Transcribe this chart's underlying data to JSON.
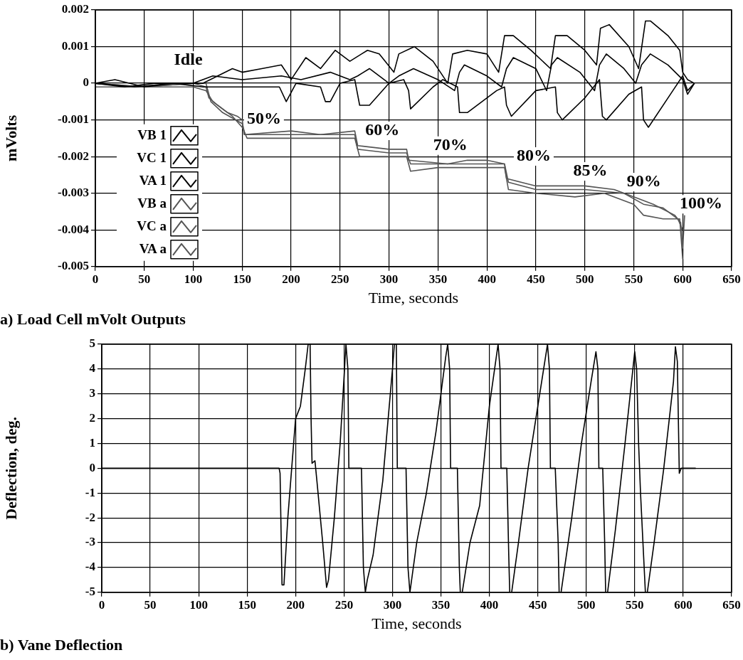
{
  "chart_data": [
    {
      "type": "line",
      "title": "a) Load Cell mVolt Outputs",
      "xlabel": "Time, seconds",
      "ylabel": "mVolts",
      "xlim": [
        0,
        650
      ],
      "xticks": [
        0,
        50,
        100,
        150,
        200,
        250,
        300,
        350,
        400,
        450,
        500,
        550,
        600,
        650
      ],
      "ylim": [
        -0.005,
        0.002
      ],
      "yticks": [
        -0.005,
        -0.004,
        -0.003,
        -0.002,
        -0.001,
        0,
        0.001,
        0.002
      ],
      "grid": true,
      "marker": "none",
      "legend": "bottom left",
      "annotations": [
        "Idle",
        "50%",
        "60%",
        "70%",
        "80%",
        "85%",
        "90%",
        "100%"
      ],
      "series": [
        {
          "name": "VB 1",
          "color": "#000000",
          "x": [
            0,
            20,
            50,
            80,
            110,
            125,
            140,
            150,
            170,
            190,
            200,
            215,
            230,
            245,
            260,
            278,
            290,
            305,
            310,
            326,
            345,
            360,
            365,
            380,
            400,
            412,
            418,
            427,
            445,
            465,
            470,
            482,
            500,
            512,
            516,
            525,
            545,
            555,
            562,
            567,
            585,
            597,
            600,
            605,
            612
          ],
          "values": [
            0,
            0.0001,
            -0.0001,
            0,
            0,
            0.0002,
            0.0004,
            0.0003,
            0.0004,
            0.0005,
            0.0001,
            0.0007,
            0.0004,
            0.0009,
            0.0006,
            0.0009,
            0.0008,
            0.0003,
            0.0008,
            0.001,
            0.0006,
            0,
            0.0008,
            0.0009,
            0.0008,
            0.0003,
            0.0013,
            0.0013,
            0.0009,
            0.0004,
            0.0013,
            0.0013,
            0.0009,
            0.0005,
            0.0015,
            0.0016,
            0.001,
            0.0004,
            0.0017,
            0.0017,
            0.0013,
            0.0009,
            0.0003,
            0.0001,
            0
          ]
        },
        {
          "name": "VC 1",
          "color": "#000000",
          "x": [
            0,
            30,
            60,
            100,
            120,
            150,
            190,
            210,
            240,
            260,
            268,
            280,
            300,
            310,
            325,
            350,
            367,
            372,
            377,
            400,
            415,
            420,
            427,
            450,
            461,
            466,
            472,
            495,
            510,
            515,
            522,
            540,
            552,
            558,
            567,
            585,
            600,
            605,
            612
          ],
          "values": [
            0,
            -0.0001,
            0,
            0,
            0.0002,
            0.0001,
            0.0002,
            0.0001,
            0.0003,
            0.0001,
            0.0002,
            0.0004,
            0,
            0.0002,
            0.0004,
            0.0001,
            -0.0002,
            0.0003,
            0.0005,
            0.0002,
            -0.0001,
            0.0004,
            0.0007,
            0.0004,
            -0.0002,
            0.0005,
            0.0007,
            0.0003,
            -0.0002,
            0.0005,
            0.0008,
            0.0004,
            0,
            0.0005,
            0.0008,
            0.0005,
            0.0001,
            -0.0003,
            0
          ]
        },
        {
          "name": "VA 1",
          "color": "#000000",
          "x": [
            0,
            40,
            80,
            110,
            150,
            188,
            195,
            205,
            230,
            235,
            240,
            250,
            265,
            270,
            280,
            300,
            315,
            320,
            322,
            345,
            355,
            370,
            372,
            380,
            410,
            418,
            420,
            425,
            450,
            470,
            472,
            477,
            500,
            515,
            518,
            522,
            545,
            558,
            560,
            565,
            590,
            600,
            605,
            612
          ],
          "values": [
            0,
            -0.0001,
            0,
            -0.0001,
            -0.0001,
            -0.0001,
            -0.0005,
            0,
            -0.0001,
            -0.0005,
            -0.0005,
            0,
            0.0001,
            -0.0006,
            -0.0006,
            0,
            0.0001,
            -0.0002,
            -0.0007,
            -0.0001,
            0.0001,
            -0.0001,
            -0.0008,
            -0.0008,
            -0.0002,
            -0.0001,
            -0.0006,
            -0.0009,
            -0.0002,
            -0.0001,
            -0.0008,
            -0.001,
            -0.0004,
            0.0001,
            -0.0009,
            -0.001,
            -0.0003,
            -0.0001,
            -0.001,
            -0.0012,
            -0.0002,
            0.0002,
            -0.0002,
            0
          ]
        },
        {
          "name": "VB a",
          "color": "#555555",
          "x": [
            0,
            50,
            100,
            113,
            116,
            125,
            135,
            145,
            150,
            152,
            200,
            230,
            265,
            268,
            300,
            318,
            320,
            360,
            380,
            400,
            418,
            420,
            450,
            500,
            530,
            550,
            570,
            592,
            598,
            600,
            602
          ],
          "values": [
            0,
            -0.0001,
            0,
            -0.0001,
            -0.0004,
            -0.0006,
            -0.0008,
            -0.0009,
            -0.001,
            -0.0014,
            -0.0013,
            -0.0014,
            -0.0013,
            -0.0017,
            -0.0018,
            -0.0018,
            -0.0021,
            -0.0022,
            -0.0021,
            -0.0021,
            -0.0022,
            -0.0026,
            -0.0028,
            -0.0028,
            -0.0029,
            -0.0031,
            -0.0033,
            -0.0036,
            -0.0038,
            -0.0045,
            -0.0036
          ]
        },
        {
          "name": "VC a",
          "color": "#555555",
          "x": [
            0,
            50,
            100,
            113,
            118,
            130,
            150,
            153,
            200,
            265,
            268,
            300,
            318,
            322,
            360,
            390,
            418,
            422,
            450,
            500,
            540,
            560,
            580,
            595,
            600
          ],
          "values": [
            0,
            -0.0001,
            0,
            0,
            -0.0005,
            -0.0008,
            -0.0011,
            -0.0014,
            -0.0014,
            -0.0014,
            -0.0018,
            -0.0019,
            -0.0019,
            -0.0022,
            -0.0022,
            -0.0022,
            -0.0022,
            -0.0027,
            -0.0029,
            -0.0029,
            -0.003,
            -0.0033,
            -0.0034,
            -0.0037,
            -0.004
          ]
        },
        {
          "name": "VA a",
          "color": "#555555",
          "x": [
            0,
            50,
            100,
            113,
            120,
            140,
            150,
            155,
            200,
            265,
            270,
            300,
            318,
            322,
            350,
            380,
            418,
            422,
            450,
            490,
            520,
            550,
            560,
            580,
            597,
            600
          ],
          "values": [
            -0.0001,
            -0.0001,
            -0.0001,
            -0.0002,
            -0.0005,
            -0.0009,
            -0.0012,
            -0.0015,
            -0.0015,
            -0.0015,
            -0.002,
            -0.002,
            -0.002,
            -0.0024,
            -0.0023,
            -0.0023,
            -0.0023,
            -0.0029,
            -0.003,
            -0.0031,
            -0.003,
            -0.0033,
            -0.0036,
            -0.0037,
            -0.0037,
            -0.0048
          ]
        }
      ]
    },
    {
      "type": "line",
      "title": "b) Vane Deflection",
      "xlabel": "Time, seconds",
      "ylabel": "Deflection, deg.",
      "xlim": [
        0,
        650
      ],
      "xticks": [
        0,
        50,
        100,
        150,
        200,
        250,
        300,
        350,
        400,
        450,
        500,
        550,
        600,
        650
      ],
      "ylim": [
        -5,
        5
      ],
      "yticks": [
        -5,
        -4,
        -3,
        -2,
        -1,
        0,
        1,
        2,
        3,
        4,
        5
      ],
      "grid": true,
      "marker": "none",
      "series": [
        {
          "color": "#000000",
          "x": [
            0,
            183,
            184,
            186,
            188,
            192,
            196,
            200,
            205,
            210,
            213,
            215,
            216,
            217,
            220,
            222,
            228,
            232,
            234,
            240,
            246,
            252,
            254,
            255,
            268,
            270,
            272,
            274,
            280,
            290,
            300,
            302,
            304,
            305,
            314,
            316,
            318,
            325,
            335,
            345,
            355,
            357,
            359,
            360,
            367,
            369,
            370,
            372,
            380,
            390,
            400,
            409,
            411,
            412,
            418,
            420,
            421,
            423,
            430,
            440,
            450,
            460,
            462,
            463,
            468,
            471,
            472,
            474,
            485,
            495,
            505,
            510,
            512,
            513,
            517,
            519,
            520,
            522,
            530,
            540,
            550,
            552,
            554,
            556,
            561,
            563,
            570,
            580,
            590,
            592,
            594,
            596,
            598,
            613
          ],
          "values": [
            0,
            0,
            -0.2,
            -4.7,
            -4.7,
            -2,
            0,
            2,
            2.5,
            4,
            5,
            5,
            2,
            0.2,
            0.3,
            -0.5,
            -3,
            -4.8,
            -4.5,
            -2,
            1,
            5,
            4,
            0,
            0,
            -4,
            -5,
            -4.5,
            -3.5,
            -0.5,
            4,
            5,
            5,
            0,
            0,
            -4,
            -5,
            -3,
            -1,
            1.5,
            4.5,
            5,
            4,
            0,
            0,
            -4,
            -5,
            -5,
            -3,
            -1.5,
            2.5,
            5,
            4,
            0,
            0,
            -3.5,
            -5,
            -5,
            -3,
            0,
            2.5,
            5,
            4,
            0,
            0,
            -3,
            -5,
            -5,
            -2,
            1,
            3.5,
            4.7,
            4,
            0,
            0,
            -3,
            -5,
            -5,
            -2.5,
            1,
            4.7,
            4,
            1,
            -1,
            -5,
            -5,
            -3,
            0,
            3.5,
            4.9,
            4.3,
            -0.2,
            0,
            0
          ]
        }
      ]
    }
  ]
}
